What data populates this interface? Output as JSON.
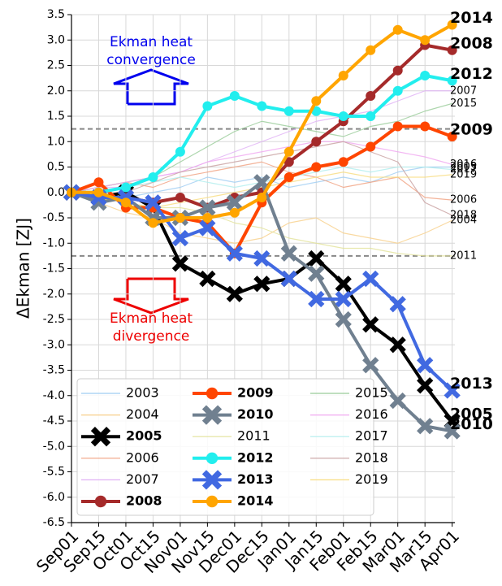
{
  "chart_data": {
    "type": "line",
    "ylabel": "ΔEkman [ZJ]",
    "x": [
      0,
      1,
      2,
      3,
      4,
      5,
      6,
      7,
      8,
      9,
      10,
      11,
      12,
      13,
      14
    ],
    "xlim": [
      0,
      14.1
    ],
    "xticks": [
      {
        "value": 0,
        "label": "Sep01"
      },
      {
        "value": 1,
        "label": "Sep15"
      },
      {
        "value": 2,
        "label": "Oct01"
      },
      {
        "value": 3,
        "label": "Oct15"
      },
      {
        "value": 4,
        "label": "Nov01"
      },
      {
        "value": 5,
        "label": "Nov15"
      },
      {
        "value": 6,
        "label": "Dec01"
      },
      {
        "value": 7,
        "label": "Dec15"
      },
      {
        "value": 8,
        "label": "Jan01"
      },
      {
        "value": 9,
        "label": "Jan15"
      },
      {
        "value": 10,
        "label": "Feb01"
      },
      {
        "value": 11,
        "label": "Feb15"
      },
      {
        "value": 12,
        "label": "Mar01"
      },
      {
        "value": 13,
        "label": "Mar15"
      },
      {
        "value": 14,
        "label": "Apr01"
      }
    ],
    "ylim": [
      -6.5,
      3.5
    ],
    "yticks": [
      3.5,
      {
        "value": 3,
        "label": "3.0"
      },
      2.5,
      {
        "value": 2,
        "label": "2.0"
      },
      1.5,
      {
        "value": 1,
        "label": "1.0"
      },
      0.5,
      {
        "value": 0,
        "label": "0.0"
      },
      -0.5,
      {
        "value": -1,
        "label": "-1.0"
      },
      -1.5,
      {
        "value": -2,
        "label": "-2.0"
      },
      -2.5,
      {
        "value": -3,
        "label": "-3.0"
      },
      -3.5,
      {
        "value": -4,
        "label": "-4.0"
      },
      -4.5,
      {
        "value": -5,
        "label": "-5.0"
      },
      -5.5,
      {
        "value": -6,
        "label": "-6.0"
      },
      -6.5
    ],
    "grid": true,
    "hlines": [
      1.25,
      -1.25
    ],
    "legend": "lower left",
    "annotations": [
      {
        "text": "Ekman heat\nconvergence",
        "color": "#0000ee"
      },
      {
        "text": "Ekman heat\ndivergence",
        "color": "#ee0000"
      }
    ],
    "series": [
      {
        "name": "2003",
        "color": "#9fcdf2",
        "bold": false,
        "values": [
          0,
          0,
          -0.1,
          0,
          0.1,
          0.3,
          0.2,
          0.3,
          0.1,
          0.2,
          0.3,
          0.2,
          0.4,
          0.5,
          0.5
        ]
      },
      {
        "name": "2004",
        "color": "#f8cf8a",
        "bold": false,
        "values": [
          0,
          -0.2,
          -0.4,
          -0.5,
          -0.8,
          -0.9,
          -1,
          -0.9,
          -0.6,
          -0.5,
          -0.8,
          -0.9,
          -1,
          -0.8,
          -0.55
        ]
      },
      {
        "name": "2005",
        "color": "#000000",
        "bold": true,
        "marker": "x",
        "values": [
          0,
          -0.1,
          0,
          -0.3,
          -1.4,
          -1.7,
          -2,
          -1.8,
          -1.7,
          -1.3,
          -1.8,
          -2.6,
          -3,
          -3.8,
          -4.5
        ]
      },
      {
        "name": "2006",
        "color": "#f0a080",
        "bold": false,
        "values": [
          0,
          0.1,
          0.2,
          0.1,
          0.3,
          0.4,
          0.5,
          0.6,
          0.4,
          0.3,
          0.1,
          0.2,
          0.3,
          -0.1,
          -0.15
        ]
      },
      {
        "name": "2007",
        "color": "#e0b0f5",
        "bold": false,
        "values": [
          0,
          0.1,
          0.1,
          0.3,
          0.4,
          0.6,
          0.8,
          1,
          1.2,
          1.4,
          1.5,
          1.6,
          1.8,
          2,
          2
        ]
      },
      {
        "name": "2008",
        "color": "#a52a2a",
        "bold": true,
        "marker": "o",
        "values": [
          0,
          -0.1,
          -0.1,
          -0.2,
          -0.1,
          -0.3,
          -0.1,
          0,
          0.6,
          1,
          1.4,
          1.9,
          2.4,
          2.9,
          2.8
        ]
      },
      {
        "name": "2009",
        "color": "#ff4500",
        "bold": true,
        "marker": "o",
        "values": [
          0,
          0.2,
          -0.3,
          -0.3,
          -0.5,
          -0.6,
          -1.2,
          -0.2,
          0.3,
          0.5,
          0.6,
          0.9,
          1.3,
          1.3,
          1.1
        ]
      },
      {
        "name": "2010",
        "color": "#708090",
        "bold": true,
        "marker": "x",
        "values": [
          0,
          -0.2,
          -0.1,
          -0.5,
          -0.5,
          -0.3,
          -0.2,
          0.2,
          -1.2,
          -1.6,
          -2.5,
          -3.4,
          -4.1,
          -4.6,
          -4.7
        ]
      },
      {
        "name": "2011",
        "color": "#e2e29a",
        "bold": false,
        "values": [
          0,
          -0.1,
          -0.2,
          -0.3,
          -0.3,
          -0.4,
          -0.6,
          -0.7,
          -0.9,
          -1,
          -1.1,
          -1.1,
          -1.2,
          -1.25,
          -1.25
        ]
      },
      {
        "name": "2012",
        "color": "#22eeee",
        "bold": true,
        "marker": "o",
        "values": [
          0,
          0,
          0.1,
          0.3,
          0.8,
          1.7,
          1.9,
          1.7,
          1.6,
          1.6,
          1.5,
          1.5,
          2,
          2.3,
          2.2
        ]
      },
      {
        "name": "2013",
        "color": "#4169e1",
        "bold": true,
        "marker": "x",
        "values": [
          0,
          -0.1,
          -0.1,
          -0.2,
          -0.9,
          -0.7,
          -1.2,
          -1.3,
          -1.7,
          -2.1,
          -2.1,
          -1.7,
          -2.2,
          -3.4,
          -3.9
        ]
      },
      {
        "name": "2014",
        "color": "#ffa500",
        "bold": true,
        "marker": "o",
        "values": [
          0,
          0,
          -0.2,
          -0.6,
          -0.5,
          -0.5,
          -0.4,
          -0.1,
          0.8,
          1.8,
          2.3,
          2.8,
          3.2,
          3,
          3.3
        ]
      },
      {
        "name": "2015",
        "color": "#99cc99",
        "bold": false,
        "values": [
          0,
          0.1,
          0.2,
          0.3,
          0.6,
          0.9,
          1.2,
          1.4,
          1.3,
          1.2,
          1.1,
          1.3,
          1.4,
          1.6,
          1.75
        ]
      },
      {
        "name": "2016",
        "color": "#f0a8f0",
        "bold": false,
        "values": [
          0,
          0.1,
          0.2,
          0.3,
          0.4,
          0.6,
          0.7,
          0.8,
          0.9,
          1,
          1,
          0.9,
          0.8,
          0.7,
          0.55
        ]
      },
      {
        "name": "2017",
        "color": "#b0eeee",
        "bold": false,
        "values": [
          0,
          0,
          0.1,
          0.2,
          0.3,
          0.2,
          0.1,
          0.2,
          0.3,
          0.4,
          0.5,
          0.4,
          0.5,
          0.5,
          0.45
        ]
      },
      {
        "name": "2018",
        "color": "#c8a0a0",
        "bold": false,
        "values": [
          0,
          -0.1,
          0,
          0.2,
          0.4,
          0.5,
          0.6,
          0.7,
          0.8,
          0.9,
          1,
          0.8,
          0.6,
          -0.2,
          -0.45
        ]
      },
      {
        "name": "2019",
        "color": "#f8dc80",
        "bold": false,
        "values": [
          0,
          -0.1,
          -0.2,
          -0.3,
          -0.2,
          -0.1,
          0,
          0.1,
          0.2,
          0.3,
          0.4,
          0.3,
          0.3,
          0.3,
          0.35
        ]
      }
    ]
  }
}
